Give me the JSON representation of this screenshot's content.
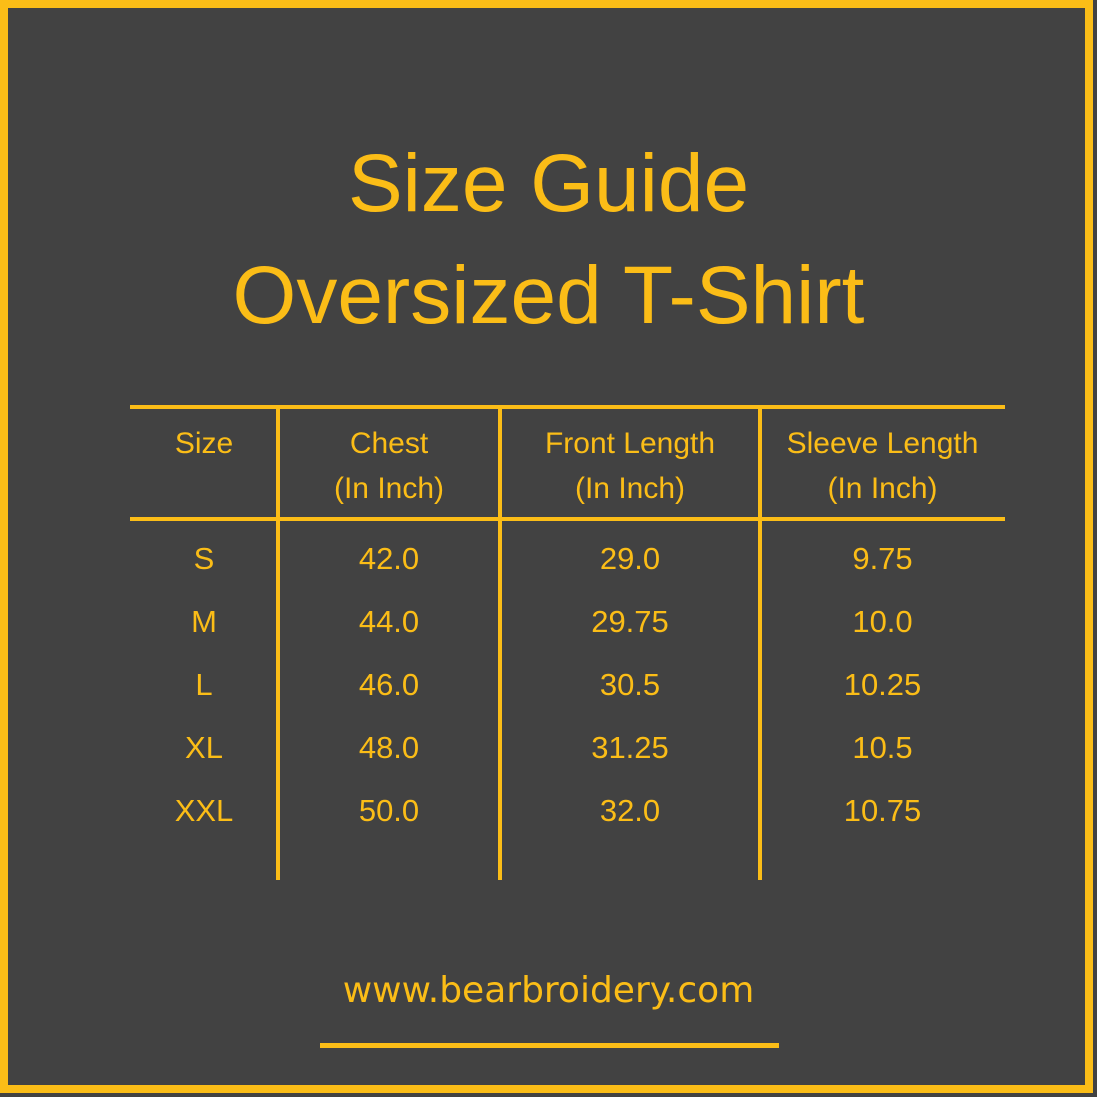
{
  "title": {
    "line1": "Size Guide",
    "line2": "Oversized T-Shirt"
  },
  "table": {
    "columns": [
      {
        "label": "Size",
        "sub": ""
      },
      {
        "label": "Chest",
        "sub": "(In Inch)"
      },
      {
        "label": "Front Length",
        "sub": "(In Inch)"
      },
      {
        "label": "Sleeve Length",
        "sub": "(In Inch)"
      }
    ],
    "rows": [
      {
        "size": "S",
        "chest": "42.0",
        "front_length": "29.0",
        "sleeve_length": "9.75"
      },
      {
        "size": "M",
        "chest": "44.0",
        "front_length": "29.75",
        "sleeve_length": "10.0"
      },
      {
        "size": "L",
        "chest": "46.0",
        "front_length": "30.5",
        "sleeve_length": "10.25"
      },
      {
        "size": "XL",
        "chest": "48.0",
        "front_length": "31.25",
        "sleeve_length": "10.5"
      },
      {
        "size": "XXL",
        "chest": "50.0",
        "front_length": "32.0",
        "sleeve_length": "10.75"
      }
    ]
  },
  "footer": {
    "website": "www.bearbroidery.com"
  },
  "colors": {
    "background": "#424242",
    "accent_yellow": "#FBBD17"
  },
  "chart_data": {
    "type": "table",
    "title": "Size Guide Oversized T-Shirt",
    "columns": [
      "Size",
      "Chest (In Inch)",
      "Front Length (In Inch)",
      "Sleeve Length (In Inch)"
    ],
    "rows": [
      [
        "S",
        42.0,
        29.0,
        9.75
      ],
      [
        "M",
        44.0,
        29.75,
        10.0
      ],
      [
        "L",
        46.0,
        30.5,
        10.25
      ],
      [
        "XL",
        48.0,
        31.25,
        10.5
      ],
      [
        "XXL",
        50.0,
        32.0,
        10.75
      ]
    ]
  }
}
